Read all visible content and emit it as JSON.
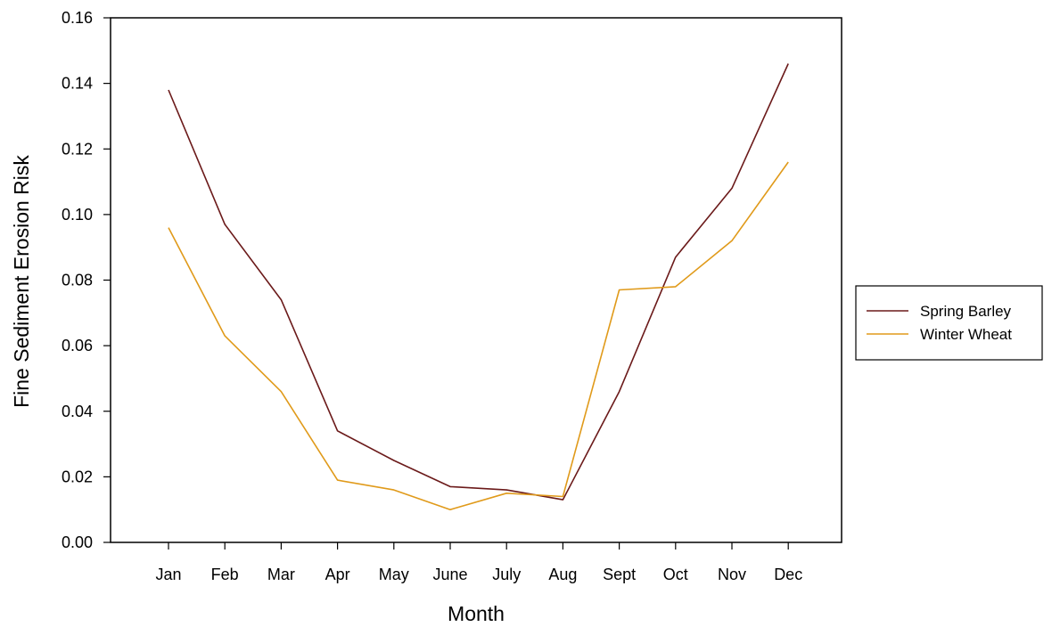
{
  "chart_data": {
    "type": "line",
    "title": "",
    "xlabel": "Month",
    "ylabel": "Fine Sediment Erosion Risk",
    "categories": [
      "Jan",
      "Feb",
      "Mar",
      "Apr",
      "May",
      "June",
      "July",
      "Aug",
      "Sept",
      "Oct",
      "Nov",
      "Dec"
    ],
    "ylim": [
      0,
      0.16
    ],
    "yticks": [
      "0.00",
      "0.02",
      "0.04",
      "0.06",
      "0.08",
      "0.10",
      "0.12",
      "0.14",
      "0.16"
    ],
    "grid": false,
    "legend_position": "right",
    "series": [
      {
        "name": "Spring Barley",
        "color": "#6b1a1a",
        "values": [
          0.138,
          0.097,
          0.074,
          0.034,
          0.025,
          0.017,
          0.016,
          0.013,
          0.046,
          0.087,
          0.108,
          0.146
        ]
      },
      {
        "name": "Winter Wheat",
        "color": "#e09a1a",
        "values": [
          0.096,
          0.063,
          0.046,
          0.019,
          0.016,
          0.01,
          0.015,
          0.014,
          0.077,
          0.078,
          0.092,
          0.116
        ]
      }
    ]
  }
}
